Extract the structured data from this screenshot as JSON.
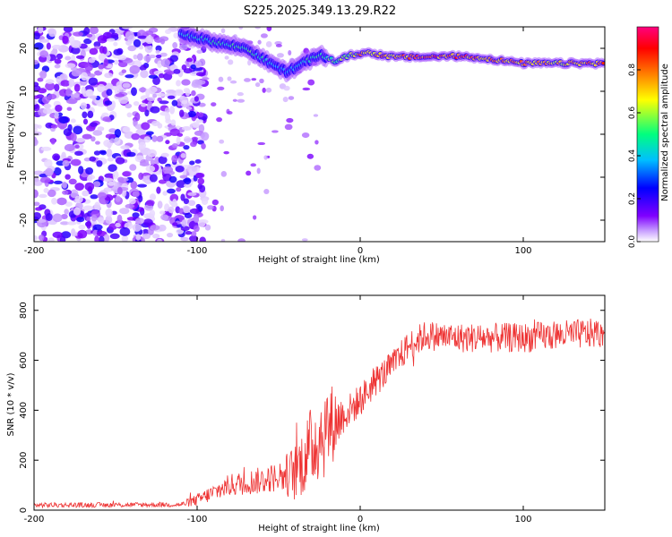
{
  "title": "S225.2025.349.13.29.R22",
  "chart_data": [
    {
      "type": "heatmap",
      "name": "spectrogram",
      "xlabel": "Height of straight line (km)",
      "ylabel": "Frequency (Hz)",
      "xlim": [
        -200,
        150
      ],
      "ylim": [
        -25,
        25
      ],
      "xticks": [
        -200,
        -100,
        0,
        100
      ],
      "yticks": [
        -20,
        -10,
        0,
        10,
        20
      ],
      "colorbar": {
        "label": "Normalized spectral amplitude",
        "range": [
          0.0,
          1.0
        ],
        "ticks": [
          "0.0",
          "0.2",
          "0.4",
          "0.6",
          "0.8"
        ],
        "tick_values": [
          0.0,
          0.2,
          0.4,
          0.6,
          0.8
        ],
        "stops": [
          "#ffffff",
          "#7f00ff",
          "#0000ff",
          "#00bfff",
          "#00ff7f",
          "#ffff00",
          "#ff7f00",
          "#ff0000",
          "#ff007f"
        ]
      },
      "tone_track": {
        "x": [
          -110,
          -90,
          -70,
          -55,
          -45,
          -35,
          -25,
          -15,
          -5,
          5,
          20,
          40,
          60,
          80,
          100,
          120,
          150
        ],
        "freq_hz": [
          23.5,
          21.5,
          20.0,
          16.5,
          14.5,
          16.5,
          18.5,
          17.0,
          18.5,
          19.0,
          18.0,
          18.0,
          18.2,
          17.5,
          16.5,
          16.5,
          16.5
        ],
        "peak_amplitude": [
          0.4,
          0.5,
          0.55,
          0.45,
          0.4,
          0.5,
          0.55,
          0.6,
          0.7,
          0.85,
          0.8,
          0.9,
          0.9,
          0.85,
          0.8,
          0.75,
          0.85
        ]
      },
      "noise_region_x": [
        -200,
        -105
      ]
    },
    {
      "type": "line",
      "name": "snr",
      "xlabel": "Height of straight line (km)",
      "ylabel": "SNR (10 * v/v)",
      "xlim": [
        -200,
        150
      ],
      "ylim": [
        0,
        860
      ],
      "xticks": [
        -200,
        -100,
        0,
        100
      ],
      "yticks": [
        0,
        200,
        400,
        600,
        800
      ],
      "color": "#ee3333",
      "trend": {
        "x": [
          -200,
          -110,
          -100,
          -90,
          -80,
          -60,
          -40,
          -30,
          -25,
          -20,
          -10,
          0,
          10,
          20,
          30,
          40,
          60,
          80,
          100,
          120,
          150
        ],
        "y": [
          20,
          22,
          40,
          70,
          100,
          120,
          150,
          250,
          300,
          330,
          380,
          440,
          520,
          580,
          660,
          700,
          690,
          690,
          690,
          700,
          710
        ]
      },
      "noise_amplitude": {
        "x": [
          -200,
          -110,
          -100,
          -80,
          -50,
          -30,
          -20,
          -10,
          20,
          150
        ],
        "y": [
          10,
          10,
          25,
          45,
          60,
          170,
          200,
          70,
          60,
          60
        ]
      }
    }
  ]
}
